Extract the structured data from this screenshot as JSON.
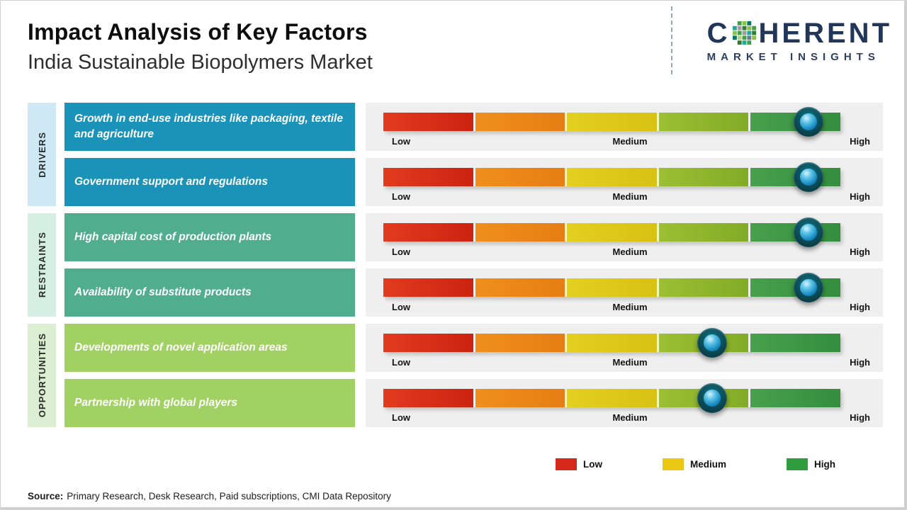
{
  "header": {
    "title": "Impact Analysis of Key Factors",
    "subtitle": "India Sustainable Biopolymers Market"
  },
  "logo": {
    "prefix": "C",
    "rest": "HERENT",
    "tagline": "MARKET INSIGHTS"
  },
  "categories": [
    {
      "label": "DRIVERS"
    },
    {
      "label": "RESTRAINTS"
    },
    {
      "label": "OPPORTUNITIES"
    }
  ],
  "scale": {
    "low": "Low",
    "medium": "Medium",
    "high": "High"
  },
  "legend": [
    {
      "label": "Low",
      "color": "#d4291a"
    },
    {
      "label": "Medium",
      "color": "#e9c713"
    },
    {
      "label": "High",
      "color": "#2f9e41"
    }
  ],
  "source": {
    "label": "Source:",
    "text": "Primary Research, Desk Research, Paid subscriptions, CMI Data Repository"
  },
  "colors": {
    "drivers_box": "#1b93b9",
    "restraints_box": "#50ae8e",
    "opportunities_box": "#a2d163",
    "drivers_strip": "#cfe9f4",
    "restraints_strip": "#d6efe5",
    "opportunities_strip": "#dcefd2",
    "bar_gradient": [
      "#d42a16",
      "#e9861a",
      "#ddc918",
      "#8fb82e",
      "#3e9a47"
    ],
    "logo_navy": "#22365a"
  },
  "chart_data": {
    "type": "table",
    "title": "Impact Analysis of Key Factors",
    "subtitle": "India Sustainable Biopolymers Market",
    "scale": [
      "Low",
      "Medium",
      "High"
    ],
    "rows": [
      {
        "category": "Drivers",
        "factor": "Growth in end-use industries like packaging, textile and agriculture",
        "impact": "High",
        "position_percent": 93
      },
      {
        "category": "Drivers",
        "factor": "Government support and regulations",
        "impact": "High",
        "position_percent": 93
      },
      {
        "category": "Restraints",
        "factor": "High capital cost of production plants",
        "impact": "High",
        "position_percent": 93
      },
      {
        "category": "Restraints",
        "factor": "Availability of substitute products",
        "impact": "High",
        "position_percent": 93
      },
      {
        "category": "Opportunities",
        "factor": "Developments of novel application areas",
        "impact": "Medium-High",
        "position_percent": 72
      },
      {
        "category": "Opportunities",
        "factor": "Partnership with global players",
        "impact": "Medium-High",
        "position_percent": 72
      }
    ]
  }
}
